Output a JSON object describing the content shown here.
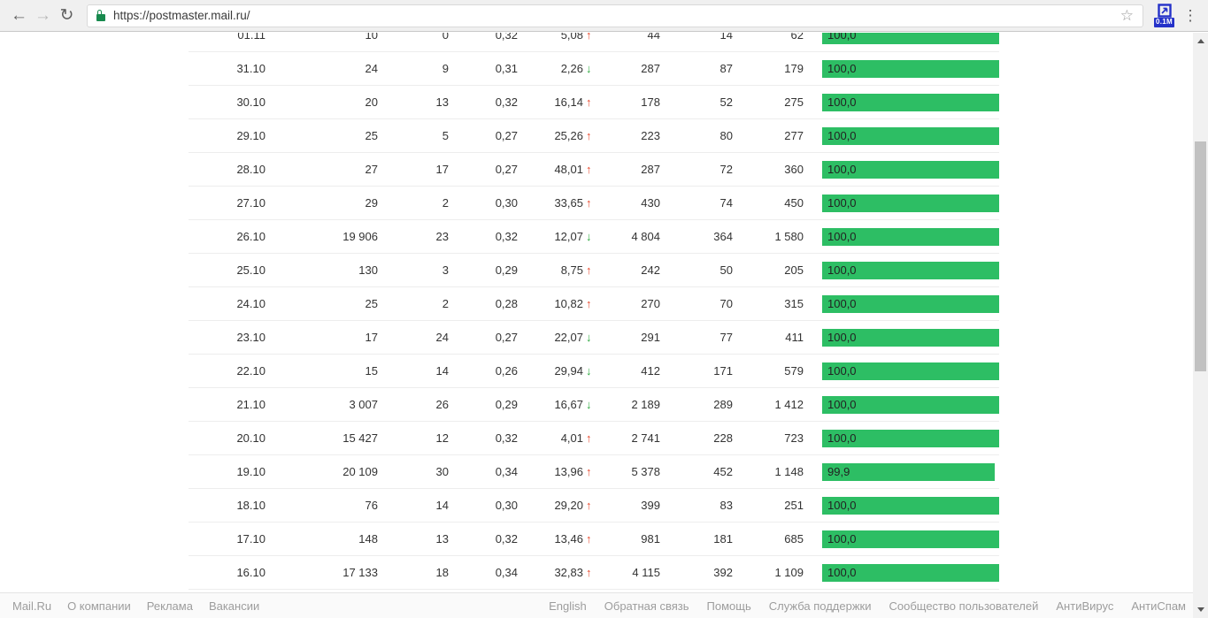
{
  "browser": {
    "url": "https://postmaster.mail.ru/",
    "extension_badge": "0.1M"
  },
  "icons": {
    "trend_up": "↑",
    "trend_down": "↓",
    "back": "←",
    "forward": "→",
    "refresh": "↻",
    "star": "☆",
    "menu": "⋮"
  },
  "colors": {
    "bar_green": "#2dbe64",
    "trend_up_red": "#e8472b",
    "trend_down_green": "#2aa83c",
    "lock_green": "#188a4e",
    "extension_blue": "#2431c9"
  },
  "table": {
    "rows": [
      {
        "date": "01.11",
        "c1": "10",
        "c2": "0",
        "c3": "0,32",
        "c4": "5,08",
        "trend": "up",
        "c5": "44",
        "c6": "14",
        "c7": "62",
        "bar": "100,0",
        "bar_pct": 100
      },
      {
        "date": "31.10",
        "c1": "24",
        "c2": "9",
        "c3": "0,31",
        "c4": "2,26",
        "trend": "down",
        "c5": "287",
        "c6": "87",
        "c7": "179",
        "bar": "100,0",
        "bar_pct": 100
      },
      {
        "date": "30.10",
        "c1": "20",
        "c2": "13",
        "c3": "0,32",
        "c4": "16,14",
        "trend": "up",
        "c5": "178",
        "c6": "52",
        "c7": "275",
        "bar": "100,0",
        "bar_pct": 100
      },
      {
        "date": "29.10",
        "c1": "25",
        "c2": "5",
        "c3": "0,27",
        "c4": "25,26",
        "trend": "up",
        "c5": "223",
        "c6": "80",
        "c7": "277",
        "bar": "100,0",
        "bar_pct": 100
      },
      {
        "date": "28.10",
        "c1": "27",
        "c2": "17",
        "c3": "0,27",
        "c4": "48,01",
        "trend": "up",
        "c5": "287",
        "c6": "72",
        "c7": "360",
        "bar": "100,0",
        "bar_pct": 100
      },
      {
        "date": "27.10",
        "c1": "29",
        "c2": "2",
        "c3": "0,30",
        "c4": "33,65",
        "trend": "up",
        "c5": "430",
        "c6": "74",
        "c7": "450",
        "bar": "100,0",
        "bar_pct": 100
      },
      {
        "date": "26.10",
        "c1": "19 906",
        "c2": "23",
        "c3": "0,32",
        "c4": "12,07",
        "trend": "down",
        "c5": "4 804",
        "c6": "364",
        "c7": "1 580",
        "bar": "100,0",
        "bar_pct": 100
      },
      {
        "date": "25.10",
        "c1": "130",
        "c2": "3",
        "c3": "0,29",
        "c4": "8,75",
        "trend": "up",
        "c5": "242",
        "c6": "50",
        "c7": "205",
        "bar": "100,0",
        "bar_pct": 100
      },
      {
        "date": "24.10",
        "c1": "25",
        "c2": "2",
        "c3": "0,28",
        "c4": "10,82",
        "trend": "up",
        "c5": "270",
        "c6": "70",
        "c7": "315",
        "bar": "100,0",
        "bar_pct": 100
      },
      {
        "date": "23.10",
        "c1": "17",
        "c2": "24",
        "c3": "0,27",
        "c4": "22,07",
        "trend": "down",
        "c5": "291",
        "c6": "77",
        "c7": "411",
        "bar": "100,0",
        "bar_pct": 100
      },
      {
        "date": "22.10",
        "c1": "15",
        "c2": "14",
        "c3": "0,26",
        "c4": "29,94",
        "trend": "down",
        "c5": "412",
        "c6": "171",
        "c7": "579",
        "bar": "100,0",
        "bar_pct": 100
      },
      {
        "date": "21.10",
        "c1": "3 007",
        "c2": "26",
        "c3": "0,29",
        "c4": "16,67",
        "trend": "down",
        "c5": "2 189",
        "c6": "289",
        "c7": "1 412",
        "bar": "100,0",
        "bar_pct": 100
      },
      {
        "date": "20.10",
        "c1": "15 427",
        "c2": "12",
        "c3": "0,32",
        "c4": "4,01",
        "trend": "up",
        "c5": "2 741",
        "c6": "228",
        "c7": "723",
        "bar": "100,0",
        "bar_pct": 100
      },
      {
        "date": "19.10",
        "c1": "20 109",
        "c2": "30",
        "c3": "0,34",
        "c4": "13,96",
        "trend": "up",
        "c5": "5 378",
        "c6": "452",
        "c7": "1 148",
        "bar": "99,9",
        "bar_pct": 97.5
      },
      {
        "date": "18.10",
        "c1": "76",
        "c2": "14",
        "c3": "0,30",
        "c4": "29,20",
        "trend": "up",
        "c5": "399",
        "c6": "83",
        "c7": "251",
        "bar": "100,0",
        "bar_pct": 100
      },
      {
        "date": "17.10",
        "c1": "148",
        "c2": "13",
        "c3": "0,32",
        "c4": "13,46",
        "trend": "up",
        "c5": "981",
        "c6": "181",
        "c7": "685",
        "bar": "100,0",
        "bar_pct": 100
      },
      {
        "date": "16.10",
        "c1": "17 133",
        "c2": "18",
        "c3": "0,34",
        "c4": "32,83",
        "trend": "up",
        "c5": "4 115",
        "c6": "392",
        "c7": "1 109",
        "bar": "100,0",
        "bar_pct": 100
      }
    ]
  },
  "footer": {
    "left_links": [
      "Mail.Ru",
      "О компании",
      "Реклама",
      "Вакансии"
    ],
    "right_links": [
      "English",
      "Обратная связь",
      "Помощь",
      "Служба поддержки",
      "Сообщество пользователей",
      "АнтиВирус",
      "АнтиСпам"
    ]
  }
}
